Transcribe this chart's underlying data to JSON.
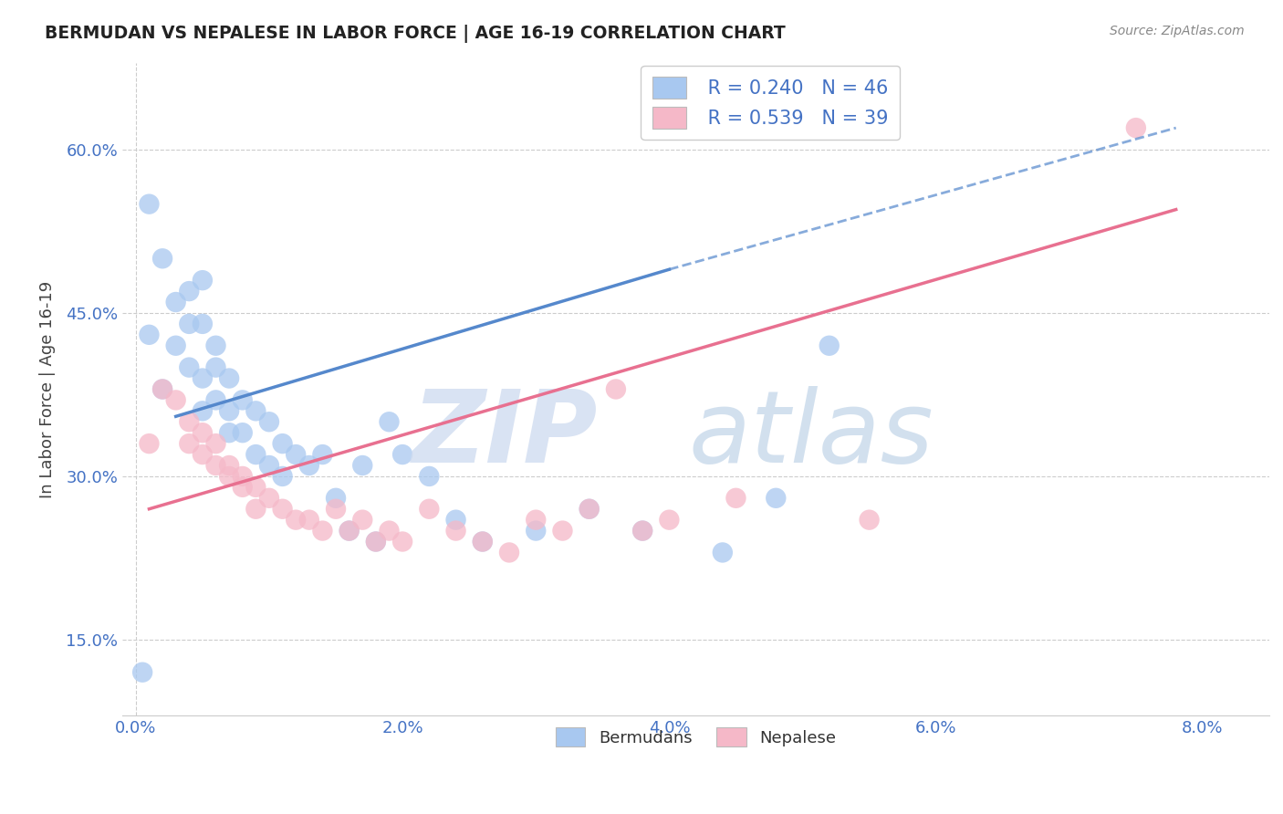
{
  "title": "BERMUDAN VS NEPALESE IN LABOR FORCE | AGE 16-19 CORRELATION CHART",
  "source": "Source: ZipAtlas.com",
  "ylabel": "In Labor Force | Age 16-19",
  "x_ticks": [
    0.0,
    0.02,
    0.04,
    0.06,
    0.08
  ],
  "x_tick_labels": [
    "0.0%",
    "2.0%",
    "4.0%",
    "6.0%",
    "8.0%"
  ],
  "y_ticks": [
    0.15,
    0.3,
    0.45,
    0.6
  ],
  "y_tick_labels": [
    "15.0%",
    "30.0%",
    "45.0%",
    "60.0%"
  ],
  "xlim": [
    -0.001,
    0.085
  ],
  "ylim": [
    0.08,
    0.68
  ],
  "blue_color": "#A8C8F0",
  "pink_color": "#F5B8C8",
  "blue_line_color": "#5588CC",
  "pink_line_color": "#E87090",
  "bermudans_x": [
    0.0005,
    0.001,
    0.001,
    0.002,
    0.002,
    0.003,
    0.003,
    0.004,
    0.004,
    0.004,
    0.005,
    0.005,
    0.005,
    0.005,
    0.006,
    0.006,
    0.006,
    0.007,
    0.007,
    0.007,
    0.008,
    0.008,
    0.009,
    0.009,
    0.01,
    0.01,
    0.011,
    0.011,
    0.012,
    0.013,
    0.014,
    0.015,
    0.016,
    0.017,
    0.018,
    0.019,
    0.02,
    0.022,
    0.024,
    0.026,
    0.03,
    0.034,
    0.038,
    0.044,
    0.048,
    0.052
  ],
  "bermudans_y": [
    0.12,
    0.55,
    0.43,
    0.5,
    0.38,
    0.46,
    0.42,
    0.47,
    0.44,
    0.4,
    0.48,
    0.44,
    0.39,
    0.36,
    0.42,
    0.4,
    0.37,
    0.39,
    0.36,
    0.34,
    0.37,
    0.34,
    0.36,
    0.32,
    0.35,
    0.31,
    0.33,
    0.3,
    0.32,
    0.31,
    0.32,
    0.28,
    0.25,
    0.31,
    0.24,
    0.35,
    0.32,
    0.3,
    0.26,
    0.24,
    0.25,
    0.27,
    0.25,
    0.23,
    0.28,
    0.42
  ],
  "nepalese_x": [
    0.001,
    0.002,
    0.003,
    0.004,
    0.004,
    0.005,
    0.005,
    0.006,
    0.006,
    0.007,
    0.007,
    0.008,
    0.008,
    0.009,
    0.009,
    0.01,
    0.011,
    0.012,
    0.013,
    0.014,
    0.015,
    0.016,
    0.017,
    0.018,
    0.019,
    0.02,
    0.022,
    0.024,
    0.026,
    0.028,
    0.03,
    0.032,
    0.034,
    0.036,
    0.038,
    0.04,
    0.045,
    0.055,
    0.075
  ],
  "nepalese_y": [
    0.33,
    0.38,
    0.37,
    0.35,
    0.33,
    0.34,
    0.32,
    0.31,
    0.33,
    0.3,
    0.31,
    0.3,
    0.29,
    0.29,
    0.27,
    0.28,
    0.27,
    0.26,
    0.26,
    0.25,
    0.27,
    0.25,
    0.26,
    0.24,
    0.25,
    0.24,
    0.27,
    0.25,
    0.24,
    0.23,
    0.26,
    0.25,
    0.27,
    0.38,
    0.25,
    0.26,
    0.28,
    0.26,
    0.62
  ]
}
